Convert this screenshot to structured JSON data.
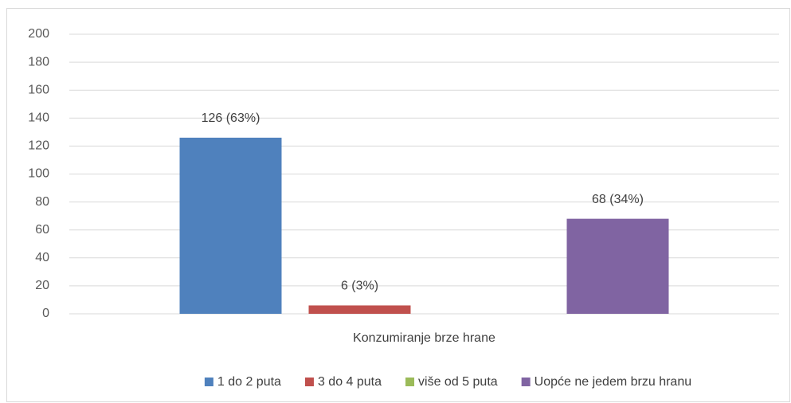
{
  "chart_data": {
    "type": "bar",
    "categories": [
      "Konzumiranje brze hrane"
    ],
    "series": [
      {
        "name": "1 do 2 puta",
        "color": "#4f81bd",
        "values": [
          126
        ],
        "value_labels": [
          "126 (63%)"
        ]
      },
      {
        "name": "3 do 4 puta",
        "color": "#c0504d",
        "values": [
          6
        ],
        "value_labels": [
          "6 (3%)"
        ]
      },
      {
        "name": "više od 5 puta",
        "color": "#9bbb59",
        "values": [
          0
        ]
      },
      {
        "name": "Uopće ne jedem brzu hranu",
        "color": "#8064a2",
        "values": [
          68
        ],
        "value_labels": [
          "68 (34%)"
        ]
      }
    ],
    "ylim": [
      0,
      200
    ],
    "yticks": [
      0,
      20,
      40,
      60,
      80,
      100,
      120,
      140,
      160,
      180,
      200
    ],
    "grid": true,
    "legend": "bottom"
  }
}
